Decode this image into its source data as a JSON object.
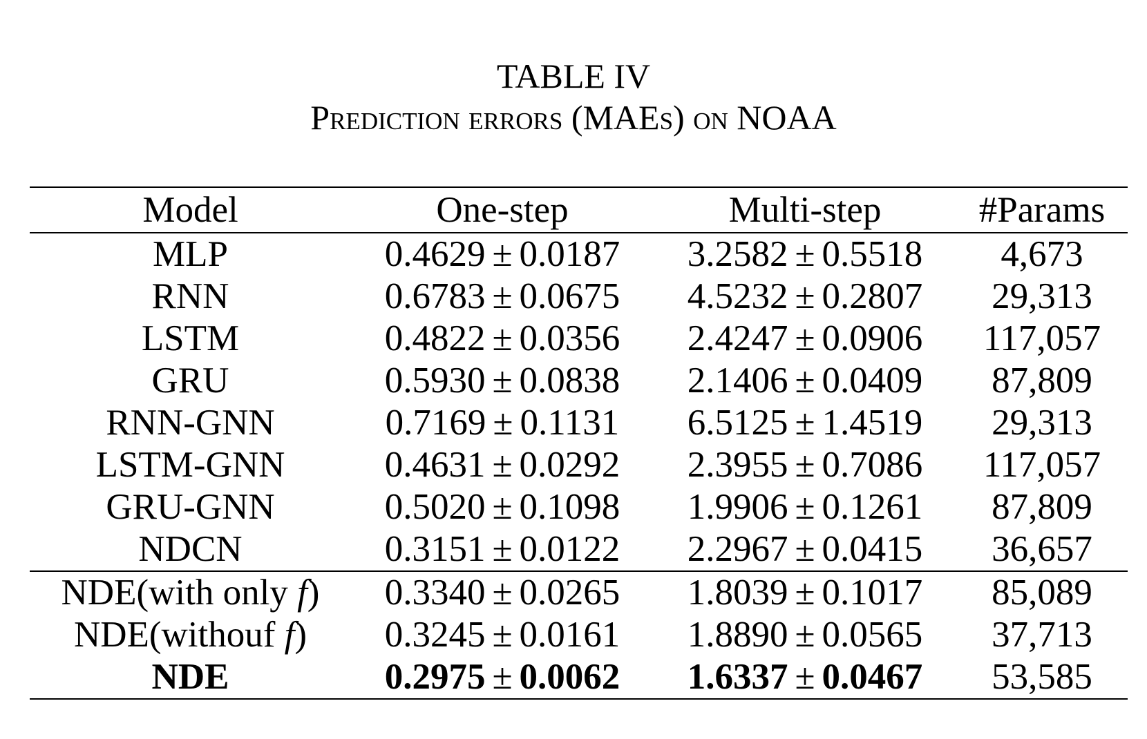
{
  "caption": {
    "number": "TABLE IV",
    "title": "Prediction errors (MAEs) on NOAA"
  },
  "table": {
    "headers": [
      "Model",
      "One-step",
      "Multi-step",
      "#Params"
    ],
    "pm_symbol": "±",
    "group1": [
      {
        "model": "MLP",
        "one_mean": "0.4629",
        "one_std": "0.0187",
        "multi_mean": "3.2582",
        "multi_std": "0.5518",
        "params": "4,673"
      },
      {
        "model": "RNN",
        "one_mean": "0.6783",
        "one_std": "0.0675",
        "multi_mean": "4.5232",
        "multi_std": "0.2807",
        "params": "29,313"
      },
      {
        "model": "LSTM",
        "one_mean": "0.4822",
        "one_std": "0.0356",
        "multi_mean": "2.4247",
        "multi_std": "0.0906",
        "params": "117,057"
      },
      {
        "model": "GRU",
        "one_mean": "0.5930",
        "one_std": "0.0838",
        "multi_mean": "2.1406",
        "multi_std": "0.0409",
        "params": "87,809"
      },
      {
        "model": "RNN-GNN",
        "one_mean": "0.7169",
        "one_std": "0.1131",
        "multi_mean": "6.5125",
        "multi_std": "1.4519",
        "params": "29,313"
      },
      {
        "model": "LSTM-GNN",
        "one_mean": "0.4631",
        "one_std": "0.0292",
        "multi_mean": "2.3955",
        "multi_std": "0.7086",
        "params": "117,057"
      },
      {
        "model": "GRU-GNN",
        "one_mean": "0.5020",
        "one_std": "0.1098",
        "multi_mean": "1.9906",
        "multi_std": "0.1261",
        "params": "87,809"
      },
      {
        "model": "NDCN",
        "one_mean": "0.3151",
        "one_std": "0.0122",
        "multi_mean": "2.2967",
        "multi_std": "0.0415",
        "params": "36,657"
      }
    ],
    "group2": [
      {
        "model_prefix": "NDE(with only ",
        "model_var": "f",
        "model_suffix": ")",
        "one_mean": "0.3340",
        "one_std": "0.0265",
        "multi_mean": "1.8039",
        "multi_std": "0.1017",
        "params": "85,089"
      },
      {
        "model_prefix": "NDE(withouf ",
        "model_var": "f",
        "model_suffix": ")",
        "one_mean": "0.3245",
        "one_std": "0.0161",
        "multi_mean": "1.8890",
        "multi_std": "0.0565",
        "params": "37,713"
      },
      {
        "model_prefix": "NDE",
        "model_var": "",
        "model_suffix": "",
        "one_mean": "0.2975",
        "one_std": "0.0062",
        "multi_mean": "1.6337",
        "multi_std": "0.0467",
        "params": "53,585"
      }
    ]
  }
}
